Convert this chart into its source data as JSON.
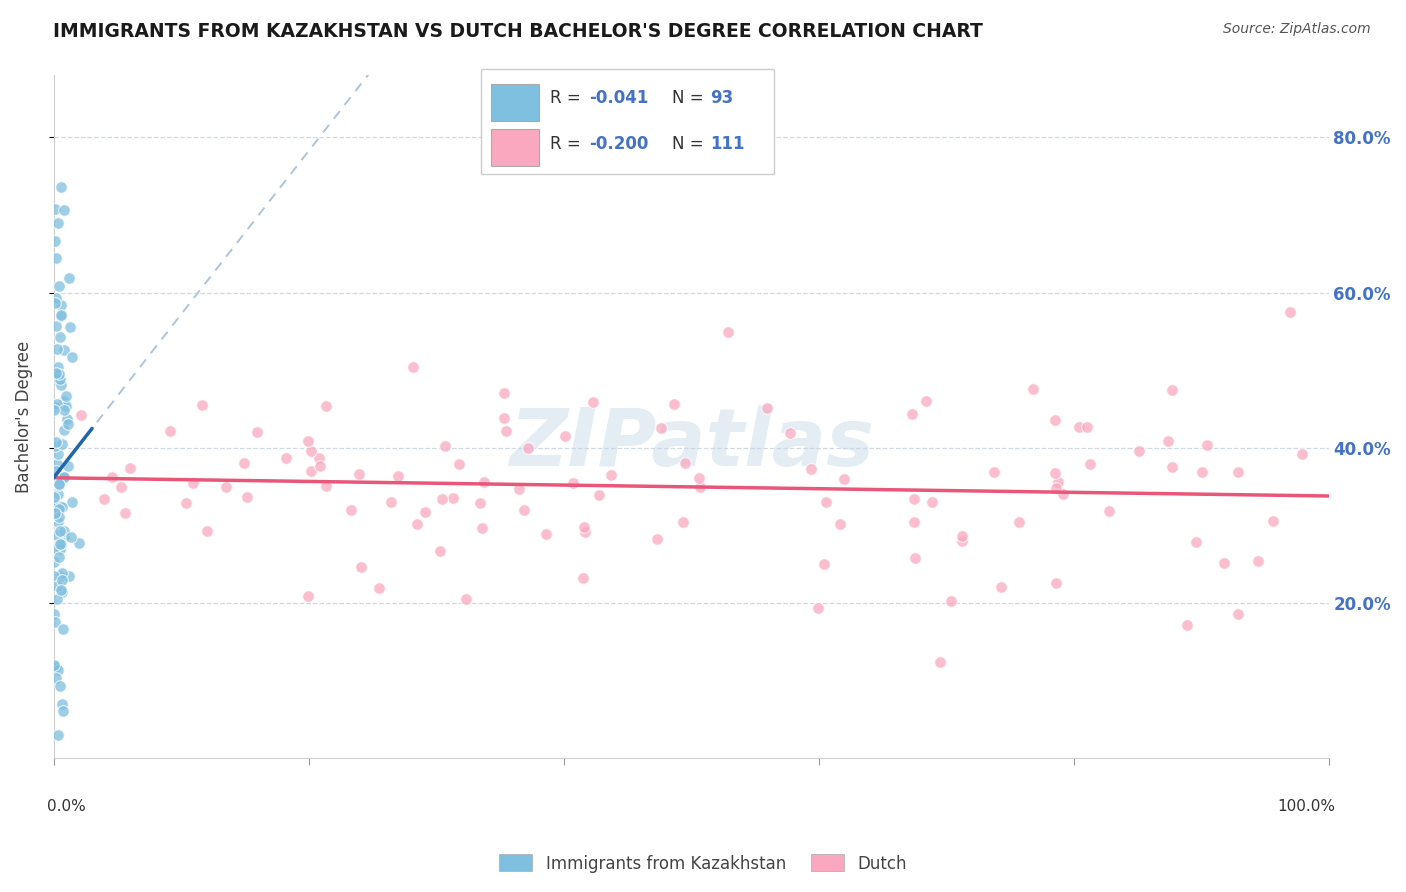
{
  "title": "IMMIGRANTS FROM KAZAKHSTAN VS DUTCH BACHELOR'S DEGREE CORRELATION CHART",
  "source": "Source: ZipAtlas.com",
  "ylabel": "Bachelor's Degree",
  "right_yticks": [
    "20.0%",
    "40.0%",
    "60.0%",
    "80.0%"
  ],
  "right_ytick_vals": [
    0.2,
    0.4,
    0.6,
    0.8
  ],
  "xlim": [
    0.0,
    1.0
  ],
  "ylim": [
    0.0,
    0.88
  ],
  "legend_blue_r": "-0.041",
  "legend_blue_n": "93",
  "legend_pink_r": "-0.200",
  "legend_pink_n": "111",
  "blue_color": "#7fbfdf",
  "pink_color": "#f9a8c0",
  "blue_line_color": "#2166ac",
  "pink_line_color": "#e8567a",
  "dashed_line_color": "#adc4d9",
  "grid_color": "#d0d8e0",
  "title_color": "#1a1a1a",
  "right_tick_color": "#4472c4",
  "source_color": "#555555",
  "watermark_color": "#c5d8e8",
  "watermark_alpha": 0.45
}
